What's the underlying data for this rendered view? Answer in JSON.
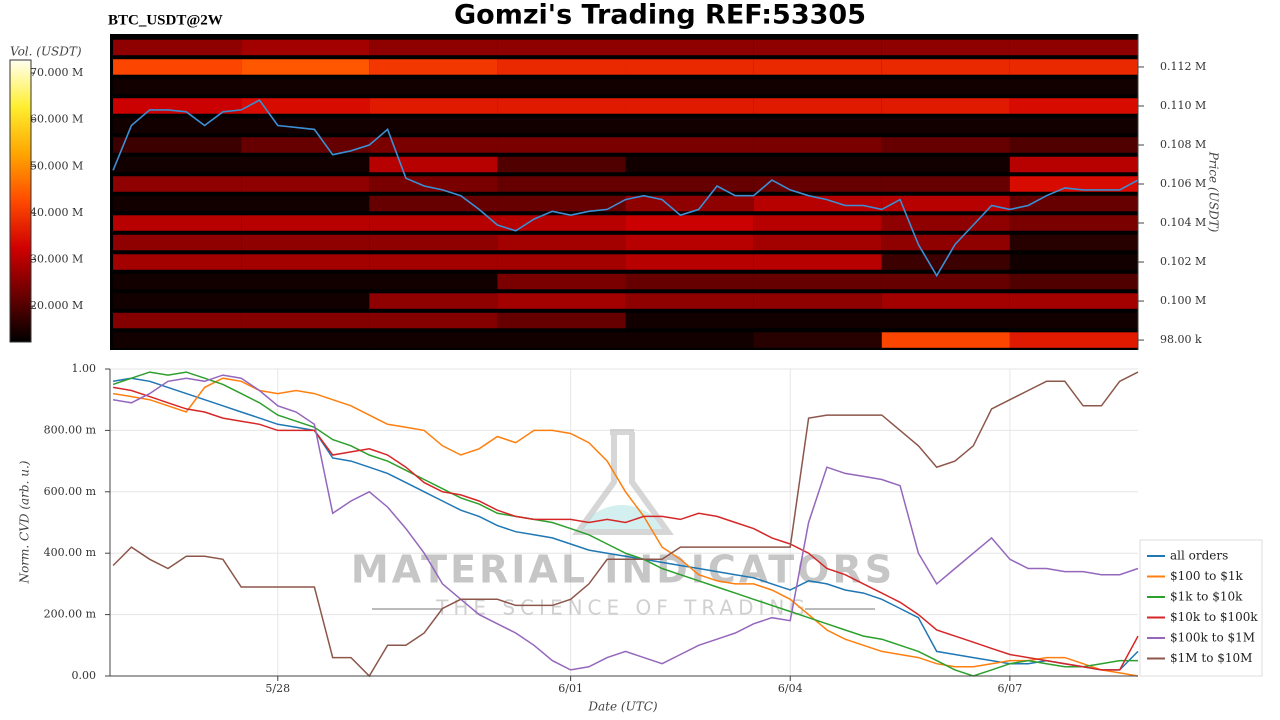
{
  "chart_data": [
    {
      "type": "heatmap",
      "title": "Gomzi's Trading REF:53305",
      "subtitle": "BTC_USDT@2W",
      "y_label": "Price (USDT)",
      "colorbar_label": "Vol. (USDT)",
      "xlim": [
        "5/25 17:00",
        "6/08 18:00"
      ],
      "ylim": [
        97490,
        113690
      ],
      "yticks": [
        {
          "value": 98000,
          "label": "98.00 k"
        },
        {
          "value": 100000,
          "label": "0.100 M"
        },
        {
          "value": 102000,
          "label": "0.102 M"
        },
        {
          "value": 104000,
          "label": "0.104 M"
        },
        {
          "value": 106000,
          "label": "0.106 M"
        },
        {
          "value": 108000,
          "label": "0.108 M"
        },
        {
          "value": 110000,
          "label": "0.110 M"
        },
        {
          "value": 112000,
          "label": "0.112 M"
        }
      ],
      "zlim": [
        12300000,
        72800000
      ],
      "zticks": [
        {
          "value": 20000000,
          "label": "20.000 M"
        },
        {
          "value": 30000000,
          "label": "30.000 M"
        },
        {
          "value": 40000000,
          "label": "40.000 M"
        },
        {
          "value": 50000000,
          "label": "50.000 M"
        },
        {
          "value": 60000000,
          "label": "60.000 M"
        },
        {
          "value": 70000000,
          "label": "70.000 M"
        }
      ],
      "colorscale": [
        "#000000",
        "#6a0000",
        "#d00000",
        "#ff4a00",
        "#ffa500",
        "#ffee30",
        "#fffff0"
      ],
      "x_edges": [
        "5/25 18:00",
        "5/27 12:00",
        "5/29 06:00",
        "5/31 00:00",
        "6/01 18:00",
        "6/03 12:00",
        "6/05 06:00",
        "6/07 00:00",
        "6/08 18:00"
      ],
      "y_edges": [
        97500,
        98500,
        99500,
        100500,
        101500,
        102500,
        103500,
        104500,
        105500,
        106500,
        107500,
        108500,
        109500,
        110500,
        111500,
        112500,
        113500
      ],
      "z": [
        [
          14000000,
          14000000,
          14000000,
          14000000,
          14000000,
          16000000,
          42000000,
          36000000
        ],
        [
          25000000,
          25000000,
          25000000,
          22000000,
          14000000,
          14000000,
          14000000,
          14000000
        ],
        [
          14000000,
          14000000,
          26000000,
          28000000,
          26000000,
          26000000,
          28000000,
          28000000
        ],
        [
          14000000,
          14000000,
          14000000,
          24000000,
          22000000,
          22000000,
          22000000,
          20000000
        ],
        [
          28000000,
          28000000,
          28000000,
          28000000,
          30000000,
          30000000,
          18000000,
          14000000
        ],
        [
          26000000,
          26000000,
          26000000,
          28000000,
          30000000,
          28000000,
          26000000,
          16000000
        ],
        [
          30000000,
          30000000,
          30000000,
          30000000,
          32000000,
          30000000,
          26000000,
          24000000
        ],
        [
          14000000,
          14000000,
          22000000,
          22000000,
          26000000,
          30000000,
          30000000,
          22000000
        ],
        [
          26000000,
          26000000,
          24000000,
          22000000,
          22000000,
          22000000,
          22000000,
          34000000
        ],
        [
          14000000,
          14000000,
          30000000,
          20000000,
          14000000,
          14000000,
          14000000,
          30000000
        ],
        [
          18000000,
          22000000,
          24000000,
          24000000,
          24000000,
          24000000,
          22000000,
          20000000
        ],
        [
          14000000,
          14000000,
          14000000,
          14000000,
          14000000,
          14000000,
          14000000,
          14000000
        ],
        [
          32000000,
          34000000,
          36000000,
          36000000,
          36000000,
          36000000,
          36000000,
          34000000
        ],
        [
          14000000,
          14000000,
          14000000,
          14000000,
          14000000,
          14000000,
          14000000,
          14000000
        ],
        [
          42000000,
          44000000,
          40000000,
          38000000,
          38000000,
          38000000,
          38000000,
          38000000
        ],
        [
          26000000,
          28000000,
          26000000,
          26000000,
          26000000,
          26000000,
          26000000,
          26000000
        ]
      ],
      "x": [
        "5/25 18:00",
        "5/26 00:00",
        "5/26 06:00",
        "5/26 12:00",
        "5/26 18:00",
        "5/27 00:00",
        "5/27 06:00",
        "5/27 12:00",
        "5/27 18:00",
        "5/28 00:00",
        "5/28 06:00",
        "5/28 12:00",
        "5/28 18:00",
        "5/29 00:00",
        "5/29 06:00",
        "5/29 12:00",
        "5/29 18:00",
        "5/30 00:00",
        "5/30 06:00",
        "5/30 12:00",
        "5/30 18:00",
        "5/31 00:00",
        "5/31 06:00",
        "5/31 12:00",
        "5/31 18:00",
        "6/01 00:00",
        "6/01 06:00",
        "6/01 12:00",
        "6/01 18:00",
        "6/02 00:00",
        "6/02 06:00",
        "6/02 12:00",
        "6/02 18:00",
        "6/03 00:00",
        "6/03 06:00",
        "6/03 12:00",
        "6/03 18:00",
        "6/04 00:00",
        "6/04 06:00",
        "6/04 12:00",
        "6/04 18:00",
        "6/05 00:00",
        "6/05 06:00",
        "6/05 12:00",
        "6/05 18:00",
        "6/06 00:00",
        "6/06 06:00",
        "6/06 12:00",
        "6/06 18:00",
        "6/07 00:00",
        "6/07 06:00",
        "6/07 12:00",
        "6/07 18:00",
        "6/08 00:00",
        "6/08 06:00",
        "6/08 12:00",
        "6/08 18:00"
      ],
      "price": {
        "color": "#3b8fd4",
        "values": [
          106700,
          109000,
          109800,
          109800,
          109700,
          109000,
          109700,
          109800,
          110300,
          109000,
          108900,
          108800,
          107500,
          107700,
          108000,
          108800,
          106300,
          105900,
          105700,
          105400,
          104700,
          103900,
          103600,
          104200,
          104600,
          104400,
          104600,
          104700,
          105200,
          105400,
          105200,
          104400,
          104700,
          105900,
          105400,
          105400,
          106200,
          105700,
          105400,
          105200,
          104900,
          104900,
          104700,
          105200,
          102900,
          101300,
          102900,
          103900,
          104900,
          104700,
          104900,
          105400,
          105800,
          105700,
          105700,
          105700,
          106200
        ]
      }
    },
    {
      "type": "line",
      "x_label": "Date (UTC)",
      "y_label": "Norm. CVD (arb. u.)",
      "watermark": [
        "MATERIAL INDICATORS",
        "THE SCIENCE OF TRADING"
      ],
      "xlim": [
        "5/25 17:00",
        "6/08 18:00"
      ],
      "xticks": [
        {
          "value": "5/28 00:00",
          "label": "5/28"
        },
        {
          "value": "6/01 00:00",
          "label": "6/01"
        },
        {
          "value": "6/04 00:00",
          "label": "6/04"
        },
        {
          "value": "6/07 00:00",
          "label": "6/07"
        }
      ],
      "ylim": [
        0,
        1
      ],
      "yticks": [
        {
          "value": 0,
          "label": "0.00"
        },
        {
          "value": 0.2,
          "label": "200.00 m"
        },
        {
          "value": 0.4,
          "label": "400.00 m"
        },
        {
          "value": 0.6,
          "label": "600.00 m"
        },
        {
          "value": 0.8,
          "label": "800.00 m"
        },
        {
          "value": 1,
          "label": "1.00"
        }
      ],
      "grid": true,
      "legend": "lower right",
      "x": [
        "5/25 18:00",
        "5/26 00:00",
        "5/26 06:00",
        "5/26 12:00",
        "5/26 18:00",
        "5/27 00:00",
        "5/27 06:00",
        "5/27 12:00",
        "5/27 18:00",
        "5/28 00:00",
        "5/28 06:00",
        "5/28 12:00",
        "5/28 18:00",
        "5/29 00:00",
        "5/29 06:00",
        "5/29 12:00",
        "5/29 18:00",
        "5/30 00:00",
        "5/30 06:00",
        "5/30 12:00",
        "5/30 18:00",
        "5/31 00:00",
        "5/31 06:00",
        "5/31 12:00",
        "5/31 18:00",
        "6/01 00:00",
        "6/01 06:00",
        "6/01 12:00",
        "6/01 18:00",
        "6/02 00:00",
        "6/02 06:00",
        "6/02 12:00",
        "6/02 18:00",
        "6/03 00:00",
        "6/03 06:00",
        "6/03 12:00",
        "6/03 18:00",
        "6/04 00:00",
        "6/04 06:00",
        "6/04 12:00",
        "6/04 18:00",
        "6/05 00:00",
        "6/05 06:00",
        "6/05 12:00",
        "6/05 18:00",
        "6/06 00:00",
        "6/06 06:00",
        "6/06 12:00",
        "6/06 18:00",
        "6/07 00:00",
        "6/07 06:00",
        "6/07 12:00",
        "6/07 18:00",
        "6/08 00:00",
        "6/08 06:00",
        "6/08 12:00",
        "6/08 18:00"
      ],
      "series": [
        {
          "name": "all orders",
          "color": "#1f77b4",
          "values": [
            0.96,
            0.97,
            0.96,
            0.94,
            0.92,
            0.9,
            0.88,
            0.86,
            0.84,
            0.82,
            0.81,
            0.8,
            0.71,
            0.7,
            0.68,
            0.66,
            0.63,
            0.6,
            0.57,
            0.54,
            0.52,
            0.49,
            0.47,
            0.46,
            0.45,
            0.43,
            0.41,
            0.4,
            0.39,
            0.38,
            0.37,
            0.36,
            0.35,
            0.34,
            0.33,
            0.32,
            0.3,
            0.28,
            0.31,
            0.3,
            0.28,
            0.27,
            0.25,
            0.22,
            0.19,
            0.08,
            0.07,
            0.06,
            0.05,
            0.04,
            0.04,
            0.05,
            0.04,
            0.03,
            0.02,
            0.02,
            0.08
          ]
        },
        {
          "name": "$100 to $1k",
          "color": "#ff7f0e",
          "values": [
            0.92,
            0.91,
            0.9,
            0.88,
            0.86,
            0.94,
            0.97,
            0.96,
            0.93,
            0.92,
            0.93,
            0.92,
            0.9,
            0.88,
            0.85,
            0.82,
            0.81,
            0.8,
            0.75,
            0.72,
            0.74,
            0.78,
            0.76,
            0.8,
            0.8,
            0.79,
            0.76,
            0.7,
            0.6,
            0.52,
            0.42,
            0.38,
            0.33,
            0.31,
            0.3,
            0.3,
            0.28,
            0.25,
            0.2,
            0.15,
            0.12,
            0.1,
            0.08,
            0.07,
            0.06,
            0.04,
            0.03,
            0.03,
            0.04,
            0.05,
            0.05,
            0.06,
            0.06,
            0.04,
            0.02,
            0.01,
            0.0
          ]
        },
        {
          "name": "$1k to $10k",
          "color": "#2ca02c",
          "values": [
            0.95,
            0.97,
            0.99,
            0.98,
            0.99,
            0.97,
            0.95,
            0.92,
            0.89,
            0.85,
            0.83,
            0.81,
            0.77,
            0.75,
            0.72,
            0.7,
            0.67,
            0.64,
            0.61,
            0.58,
            0.56,
            0.53,
            0.52,
            0.51,
            0.5,
            0.48,
            0.46,
            0.43,
            0.4,
            0.38,
            0.35,
            0.33,
            0.31,
            0.29,
            0.27,
            0.25,
            0.23,
            0.21,
            0.19,
            0.17,
            0.15,
            0.13,
            0.12,
            0.1,
            0.08,
            0.05,
            0.02,
            0.0,
            0.02,
            0.04,
            0.05,
            0.04,
            0.03,
            0.03,
            0.04,
            0.05,
            0.05
          ]
        },
        {
          "name": "$10k to $100k",
          "color": "#d62728",
          "values": [
            0.94,
            0.93,
            0.91,
            0.89,
            0.87,
            0.86,
            0.84,
            0.83,
            0.82,
            0.8,
            0.8,
            0.8,
            0.72,
            0.73,
            0.74,
            0.72,
            0.68,
            0.63,
            0.6,
            0.59,
            0.57,
            0.54,
            0.52,
            0.51,
            0.51,
            0.51,
            0.5,
            0.51,
            0.5,
            0.52,
            0.52,
            0.51,
            0.53,
            0.52,
            0.5,
            0.48,
            0.45,
            0.43,
            0.4,
            0.35,
            0.33,
            0.3,
            0.27,
            0.24,
            0.2,
            0.15,
            0.13,
            0.11,
            0.09,
            0.07,
            0.06,
            0.05,
            0.04,
            0.03,
            0.02,
            0.02,
            0.13
          ]
        },
        {
          "name": "$100k to $1M",
          "color": "#9467bd",
          "values": [
            0.9,
            0.89,
            0.92,
            0.96,
            0.97,
            0.96,
            0.98,
            0.97,
            0.93,
            0.88,
            0.86,
            0.82,
            0.53,
            0.57,
            0.6,
            0.55,
            0.48,
            0.4,
            0.3,
            0.25,
            0.2,
            0.17,
            0.14,
            0.1,
            0.05,
            0.02,
            0.03,
            0.06,
            0.08,
            0.06,
            0.04,
            0.07,
            0.1,
            0.12,
            0.14,
            0.17,
            0.19,
            0.18,
            0.5,
            0.68,
            0.66,
            0.65,
            0.64,
            0.62,
            0.4,
            0.3,
            0.35,
            0.4,
            0.45,
            0.38,
            0.35,
            0.35,
            0.34,
            0.34,
            0.33,
            0.33,
            0.35
          ]
        },
        {
          "name": "$1M to $10M",
          "color": "#8c564b",
          "values": [
            0.36,
            0.42,
            0.38,
            0.35,
            0.39,
            0.39,
            0.38,
            0.29,
            0.29,
            0.29,
            0.29,
            0.29,
            0.06,
            0.06,
            0.0,
            0.1,
            0.1,
            0.14,
            0.22,
            0.25,
            0.25,
            0.25,
            0.23,
            0.23,
            0.23,
            0.25,
            0.3,
            0.38,
            0.38,
            0.38,
            0.38,
            0.42,
            0.42,
            0.42,
            0.42,
            0.42,
            0.42,
            0.42,
            0.84,
            0.85,
            0.85,
            0.85,
            0.85,
            0.8,
            0.75,
            0.68,
            0.7,
            0.75,
            0.87,
            0.9,
            0.93,
            0.96,
            0.96,
            0.88,
            0.88,
            0.96,
            0.99
          ]
        }
      ]
    }
  ]
}
